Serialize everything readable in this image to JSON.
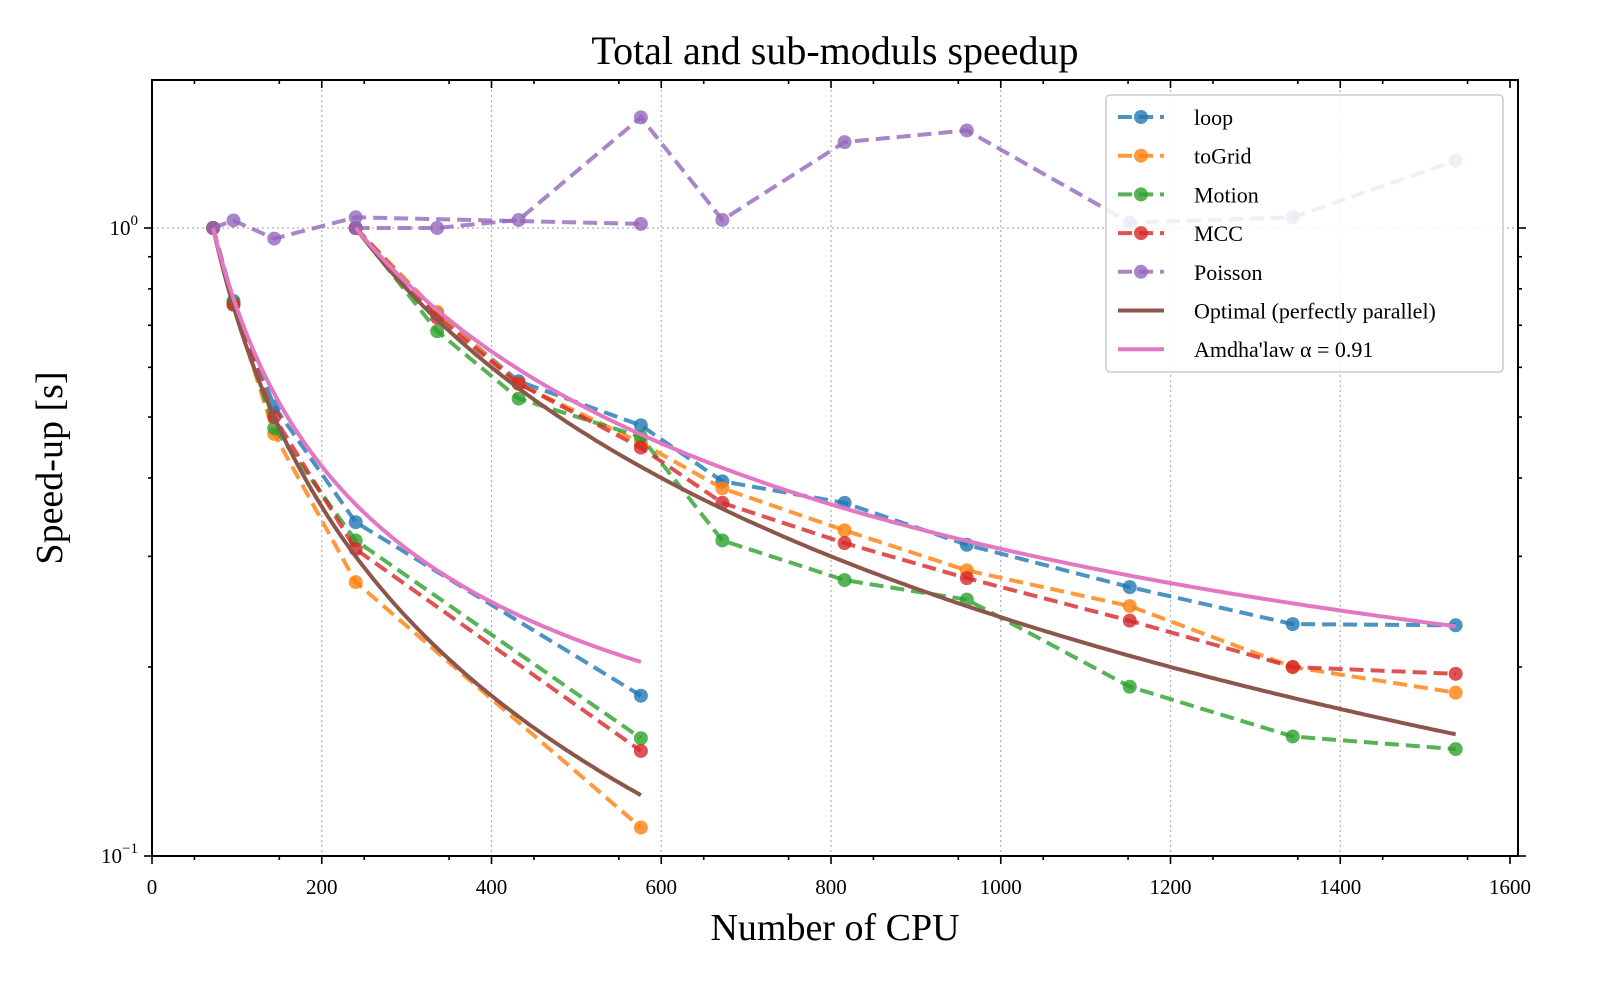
{
  "chart_data": {
    "type": "line",
    "title": "Total and sub-moduls speedup",
    "xlabel": "Number of CPU",
    "ylabel": "Speed-up [s]",
    "xlim": [
      0,
      1600
    ],
    "ylim": [
      0.1,
      2.0
    ],
    "yscale": "log",
    "grid": true,
    "legend_position": "top-right",
    "xticks": [
      0,
      200,
      400,
      600,
      800,
      1000,
      1200,
      1400,
      1600
    ],
    "xtick_labels": [
      "0",
      "200",
      "400",
      "600",
      "800",
      "1000",
      "1200",
      "1400",
      "1600"
    ],
    "yticks": [
      {
        "value": 1.0,
        "base": "10",
        "exp": "0"
      },
      {
        "value": 0.1,
        "base": "10",
        "exp": "−1"
      }
    ],
    "series": [
      {
        "name": "loop",
        "color": "#1f77b4",
        "style": "dashed-marker",
        "segments": [
          {
            "x": [
              72,
              96,
              144,
              240,
              576
            ],
            "y": [
              1.0,
              0.765,
              0.52,
              0.34,
              0.18
            ]
          },
          {
            "x": [
              240,
              336,
              432,
              576,
              672,
              816,
              960,
              1152,
              1344,
              1536
            ],
            "y": [
              1.0,
              0.73,
              0.57,
              0.485,
              0.395,
              0.365,
              0.313,
              0.268,
              0.234,
              0.233
            ]
          }
        ]
      },
      {
        "name": "toGrid",
        "color": "#ff7f0e",
        "style": "dashed-marker",
        "segments": [
          {
            "x": [
              72,
              96,
              144,
              240,
              576
            ],
            "y": [
              1.0,
              0.755,
              0.47,
              0.273,
              0.111
            ]
          },
          {
            "x": [
              240,
              336,
              432,
              576,
              672,
              816,
              960,
              1152,
              1344,
              1536
            ],
            "y": [
              1.0,
              0.735,
              0.565,
              0.455,
              0.385,
              0.33,
              0.285,
              0.25,
              0.2,
              0.182
            ]
          }
        ]
      },
      {
        "name": "Motion",
        "color": "#2ca02c",
        "style": "dashed-marker",
        "segments": [
          {
            "x": [
              72,
              96,
              144,
              240,
              576
            ],
            "y": [
              1.0,
              0.76,
              0.48,
              0.318,
              0.154
            ]
          },
          {
            "x": [
              240,
              336,
              432,
              576,
              672,
              816,
              960,
              1152,
              1344,
              1536
            ],
            "y": [
              1.0,
              0.685,
              0.535,
              0.465,
              0.318,
              0.275,
              0.256,
              0.186,
              0.155,
              0.148
            ]
          }
        ]
      },
      {
        "name": "MCC",
        "color": "#d62728",
        "style": "dashed-marker",
        "segments": [
          {
            "x": [
              72,
              96,
              144,
              240,
              576
            ],
            "y": [
              1.0,
              0.755,
              0.5,
              0.308,
              0.147
            ]
          },
          {
            "x": [
              240,
              336,
              432,
              576,
              672,
              816,
              960,
              1152,
              1344,
              1536
            ],
            "y": [
              1.0,
              0.72,
              0.565,
              0.447,
              0.365,
              0.315,
              0.277,
              0.237,
              0.2,
              0.195
            ]
          }
        ]
      },
      {
        "name": "Poisson",
        "color": "#9467bd",
        "style": "dashed-marker",
        "segments": [
          {
            "x": [
              72,
              96,
              144,
              240,
              576
            ],
            "y": [
              1.0,
              1.028,
              0.962,
              1.04,
              1.015
            ]
          },
          {
            "x": [
              240,
              336,
              432,
              576,
              672,
              816,
              960,
              1152,
              1344,
              1536
            ],
            "y": [
              1.0,
              1.0,
              1.03,
              1.5,
              1.03,
              1.37,
              1.43,
              1.02,
              1.04,
              1.28
            ]
          }
        ]
      },
      {
        "name": "Optimal (perfectly parallel)",
        "color": "#8c564b",
        "style": "solid",
        "model": "optimal",
        "segments": [
          {
            "n0": 72,
            "n_end": 576
          },
          {
            "n0": 240,
            "n_end": 1536
          }
        ]
      },
      {
        "name": "Amdha'law α = 0.91",
        "color": "#e377c2",
        "style": "solid",
        "model": "amdahl",
        "alpha": 0.91,
        "segments": [
          {
            "n0": 72,
            "n_end": 576
          },
          {
            "n0": 240,
            "n_end": 1536
          }
        ]
      }
    ]
  }
}
